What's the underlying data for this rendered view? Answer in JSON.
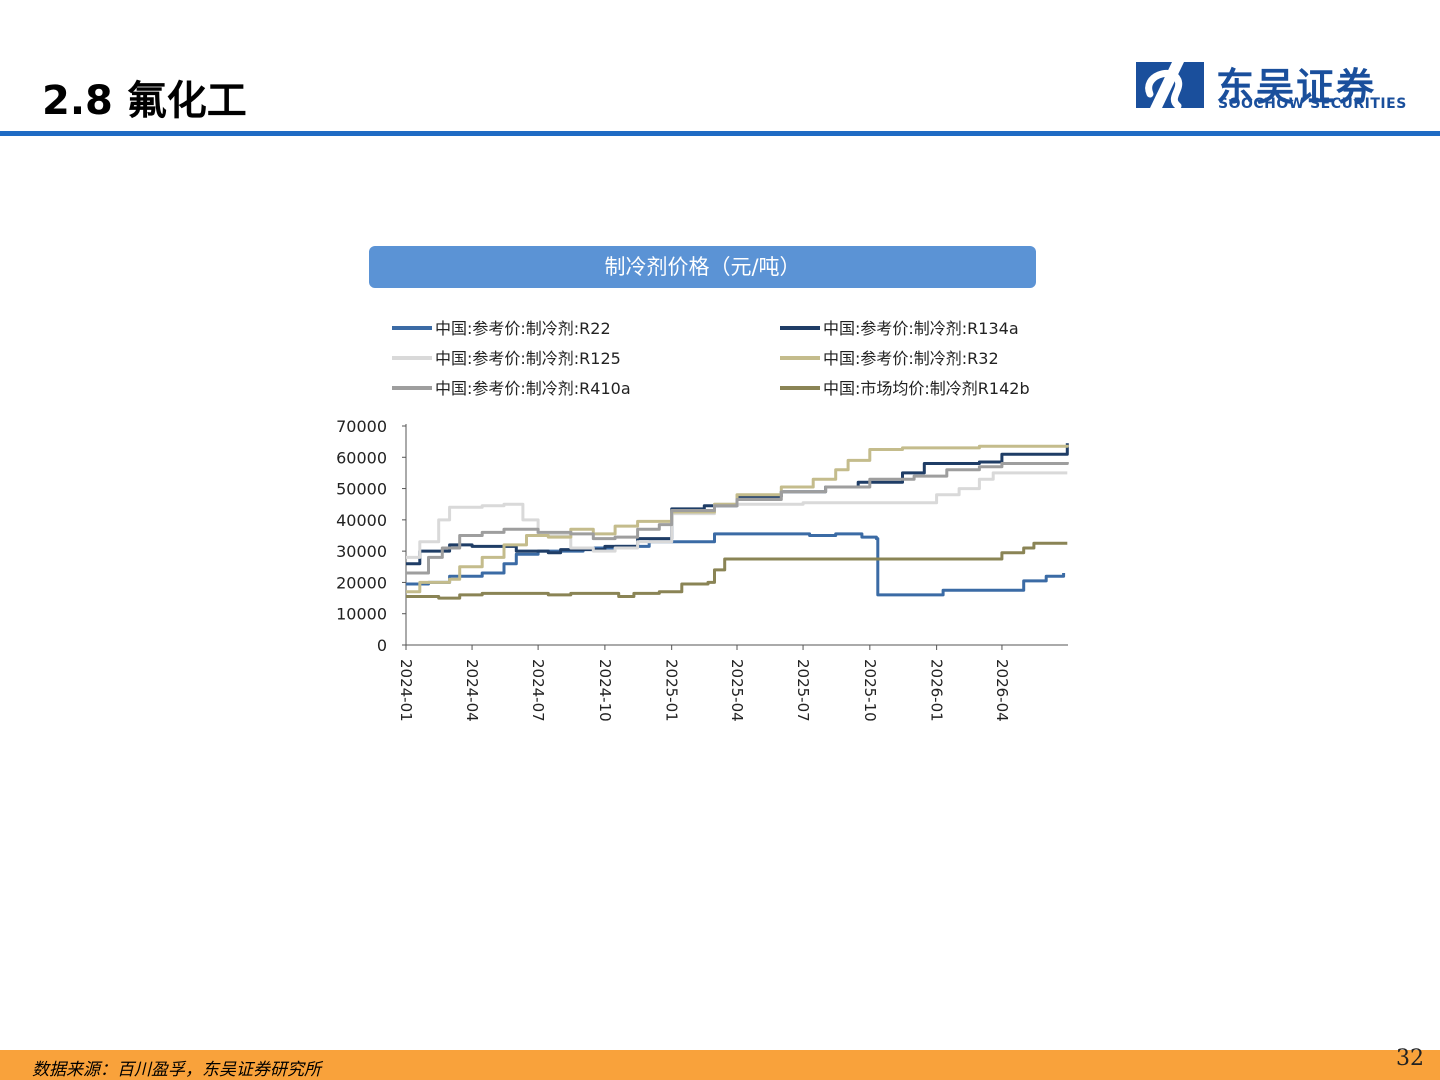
{
  "header": {
    "title": "2.8 氟化工"
  },
  "logo": {
    "name_cn": "东吴证券",
    "name_en": "SOOCHOW SECURITIES"
  },
  "footer": {
    "source": "数据来源：百川盈孚，东吴证券研究所"
  },
  "page_number": "32",
  "colors": {
    "header_rule": "#1f6bc4",
    "banner": "#5b93d5",
    "footer_bar": "#f9a23b",
    "logo": "#1a4f9c"
  },
  "chart_data": {
    "type": "line",
    "title": "制冷剂价格（元/吨）",
    "xlabel": "",
    "ylabel": "",
    "x_tick_labels": [
      "2024-01",
      "2024-04",
      "2024-07",
      "2024-10",
      "2025-01",
      "2025-04",
      "2025-07",
      "2025-10",
      "2026-01",
      "2026-04"
    ],
    "ylim": [
      0,
      70000
    ],
    "y_ticks": [
      0,
      10000,
      20000,
      30000,
      40000,
      50000,
      60000,
      70000
    ],
    "x_axis_start": "2024-01-01",
    "x_axis_end": "2026-07-01",
    "legend_position": "top",
    "grid": false,
    "series": [
      {
        "name": "中国:参考价:制冷剂:R22",
        "color": "#3b6ba5",
        "points": [
          [
            "2024-01-01",
            19500
          ],
          [
            "2024-02-01",
            20000
          ],
          [
            "2024-03-01",
            22000
          ],
          [
            "2024-04-15",
            23000
          ],
          [
            "2024-05-15",
            26000
          ],
          [
            "2024-06-01",
            29000
          ],
          [
            "2024-07-01",
            30000
          ],
          [
            "2024-09-01",
            31000
          ],
          [
            "2024-10-15",
            31500
          ],
          [
            "2024-12-01",
            33000
          ],
          [
            "2025-03-01",
            35500
          ],
          [
            "2025-07-01",
            35500
          ],
          [
            "2025-07-10",
            35000
          ],
          [
            "2025-08-15",
            35500
          ],
          [
            "2025-09-20",
            34500
          ],
          [
            "2025-10-10",
            34000
          ],
          [
            "2025-10-12",
            16000
          ],
          [
            "2025-12-15",
            16000
          ],
          [
            "2026-01-10",
            17500
          ],
          [
            "2026-04-15",
            17500
          ],
          [
            "2026-05-01",
            20500
          ],
          [
            "2026-06-01",
            22000
          ],
          [
            "2026-06-25",
            23000
          ]
        ]
      },
      {
        "name": "中国:参考价:制冷剂:R134a",
        "color": "#1f3d66",
        "points": [
          [
            "2024-01-01",
            26000
          ],
          [
            "2024-01-20",
            30000
          ],
          [
            "2024-03-01",
            32000
          ],
          [
            "2024-04-01",
            31500
          ],
          [
            "2024-06-01",
            30000
          ],
          [
            "2024-07-15",
            29500
          ],
          [
            "2024-08-01",
            30500
          ],
          [
            "2024-10-01",
            31500
          ],
          [
            "2024-11-15",
            34000
          ],
          [
            "2025-01-01",
            43500
          ],
          [
            "2025-02-15",
            44500
          ],
          [
            "2025-04-01",
            47500
          ],
          [
            "2025-06-01",
            49000
          ],
          [
            "2025-08-01",
            50500
          ],
          [
            "2025-09-15",
            52000
          ],
          [
            "2025-11-15",
            55000
          ],
          [
            "2025-12-15",
            58000
          ],
          [
            "2026-03-01",
            58500
          ],
          [
            "2026-04-01",
            61000
          ],
          [
            "2026-06-30",
            64500
          ]
        ]
      },
      {
        "name": "中国:参考价:制冷剂:R125",
        "color": "#d9d9d9",
        "points": [
          [
            "2024-01-01",
            28000
          ],
          [
            "2024-01-20",
            33000
          ],
          [
            "2024-02-15",
            40000
          ],
          [
            "2024-03-01",
            44000
          ],
          [
            "2024-04-15",
            44500
          ],
          [
            "2024-05-15",
            45000
          ],
          [
            "2024-06-10",
            40000
          ],
          [
            "2024-07-01",
            35000
          ],
          [
            "2024-08-15",
            31000
          ],
          [
            "2024-09-15",
            30000
          ],
          [
            "2024-10-15",
            31000
          ],
          [
            "2024-11-15",
            33000
          ],
          [
            "2025-01-01",
            42000
          ],
          [
            "2025-03-01",
            45000
          ],
          [
            "2025-07-01",
            45500
          ],
          [
            "2025-12-01",
            45500
          ],
          [
            "2026-01-01",
            48000
          ],
          [
            "2026-02-01",
            50000
          ],
          [
            "2026-03-01",
            53000
          ],
          [
            "2026-03-20",
            55000
          ],
          [
            "2026-06-30",
            55000
          ]
        ]
      },
      {
        "name": "中国:参考价:制冷剂:R32",
        "color": "#c4bc8c",
        "points": [
          [
            "2024-01-01",
            17000
          ],
          [
            "2024-01-20",
            20000
          ],
          [
            "2024-03-01",
            21000
          ],
          [
            "2024-03-15",
            25000
          ],
          [
            "2024-04-15",
            28000
          ],
          [
            "2024-05-15",
            32000
          ],
          [
            "2024-06-15",
            35000
          ],
          [
            "2024-07-15",
            34500
          ],
          [
            "2024-08-15",
            37000
          ],
          [
            "2024-09-15",
            35500
          ],
          [
            "2024-10-15",
            38000
          ],
          [
            "2024-11-15",
            39500
          ],
          [
            "2025-01-01",
            42500
          ],
          [
            "2025-03-01",
            45000
          ],
          [
            "2025-04-01",
            48000
          ],
          [
            "2025-06-01",
            50500
          ],
          [
            "2025-07-15",
            53000
          ],
          [
            "2025-08-15",
            56000
          ],
          [
            "2025-09-01",
            59000
          ],
          [
            "2025-10-01",
            62500
          ],
          [
            "2025-11-15",
            63000
          ],
          [
            "2026-03-01",
            63500
          ],
          [
            "2026-06-30",
            64000
          ]
        ]
      },
      {
        "name": "中国:参考价:制冷剂:R410a",
        "color": "#9e9e9e",
        "points": [
          [
            "2024-01-01",
            23000
          ],
          [
            "2024-02-01",
            28000
          ],
          [
            "2024-02-20",
            31000
          ],
          [
            "2024-03-15",
            35000
          ],
          [
            "2024-04-15",
            36000
          ],
          [
            "2024-05-15",
            37000
          ],
          [
            "2024-07-01",
            36000
          ],
          [
            "2024-08-15",
            35500
          ],
          [
            "2024-09-15",
            34000
          ],
          [
            "2024-10-15",
            34500
          ],
          [
            "2024-11-15",
            37000
          ],
          [
            "2024-12-15",
            38500
          ],
          [
            "2025-01-01",
            43000
          ],
          [
            "2025-03-01",
            44500
          ],
          [
            "2025-04-01",
            46500
          ],
          [
            "2025-06-01",
            49000
          ],
          [
            "2025-08-01",
            50500
          ],
          [
            "2025-10-01",
            53000
          ],
          [
            "2025-12-01",
            54000
          ],
          [
            "2026-01-15",
            56000
          ],
          [
            "2026-03-01",
            57000
          ],
          [
            "2026-04-01",
            58000
          ],
          [
            "2026-06-30",
            58500
          ]
        ]
      },
      {
        "name": "中国:市场均价:制冷剂R142b",
        "color": "#8a8455",
        "points": [
          [
            "2024-01-01",
            15500
          ],
          [
            "2024-02-15",
            15000
          ],
          [
            "2024-03-15",
            16000
          ],
          [
            "2024-04-15",
            16500
          ],
          [
            "2024-06-15",
            16500
          ],
          [
            "2024-07-15",
            16000
          ],
          [
            "2024-08-15",
            16500
          ],
          [
            "2024-10-01",
            16500
          ],
          [
            "2024-10-20",
            15500
          ],
          [
            "2024-11-10",
            16500
          ],
          [
            "2024-12-15",
            17000
          ],
          [
            "2025-01-15",
            19500
          ],
          [
            "2025-02-20",
            20000
          ],
          [
            "2025-03-01",
            24000
          ],
          [
            "2025-03-15",
            27500
          ],
          [
            "2025-07-15",
            27500
          ],
          [
            "2026-03-01",
            27500
          ],
          [
            "2026-04-01",
            29500
          ],
          [
            "2026-05-01",
            31000
          ],
          [
            "2026-05-15",
            32500
          ],
          [
            "2026-06-30",
            32500
          ]
        ]
      }
    ]
  }
}
